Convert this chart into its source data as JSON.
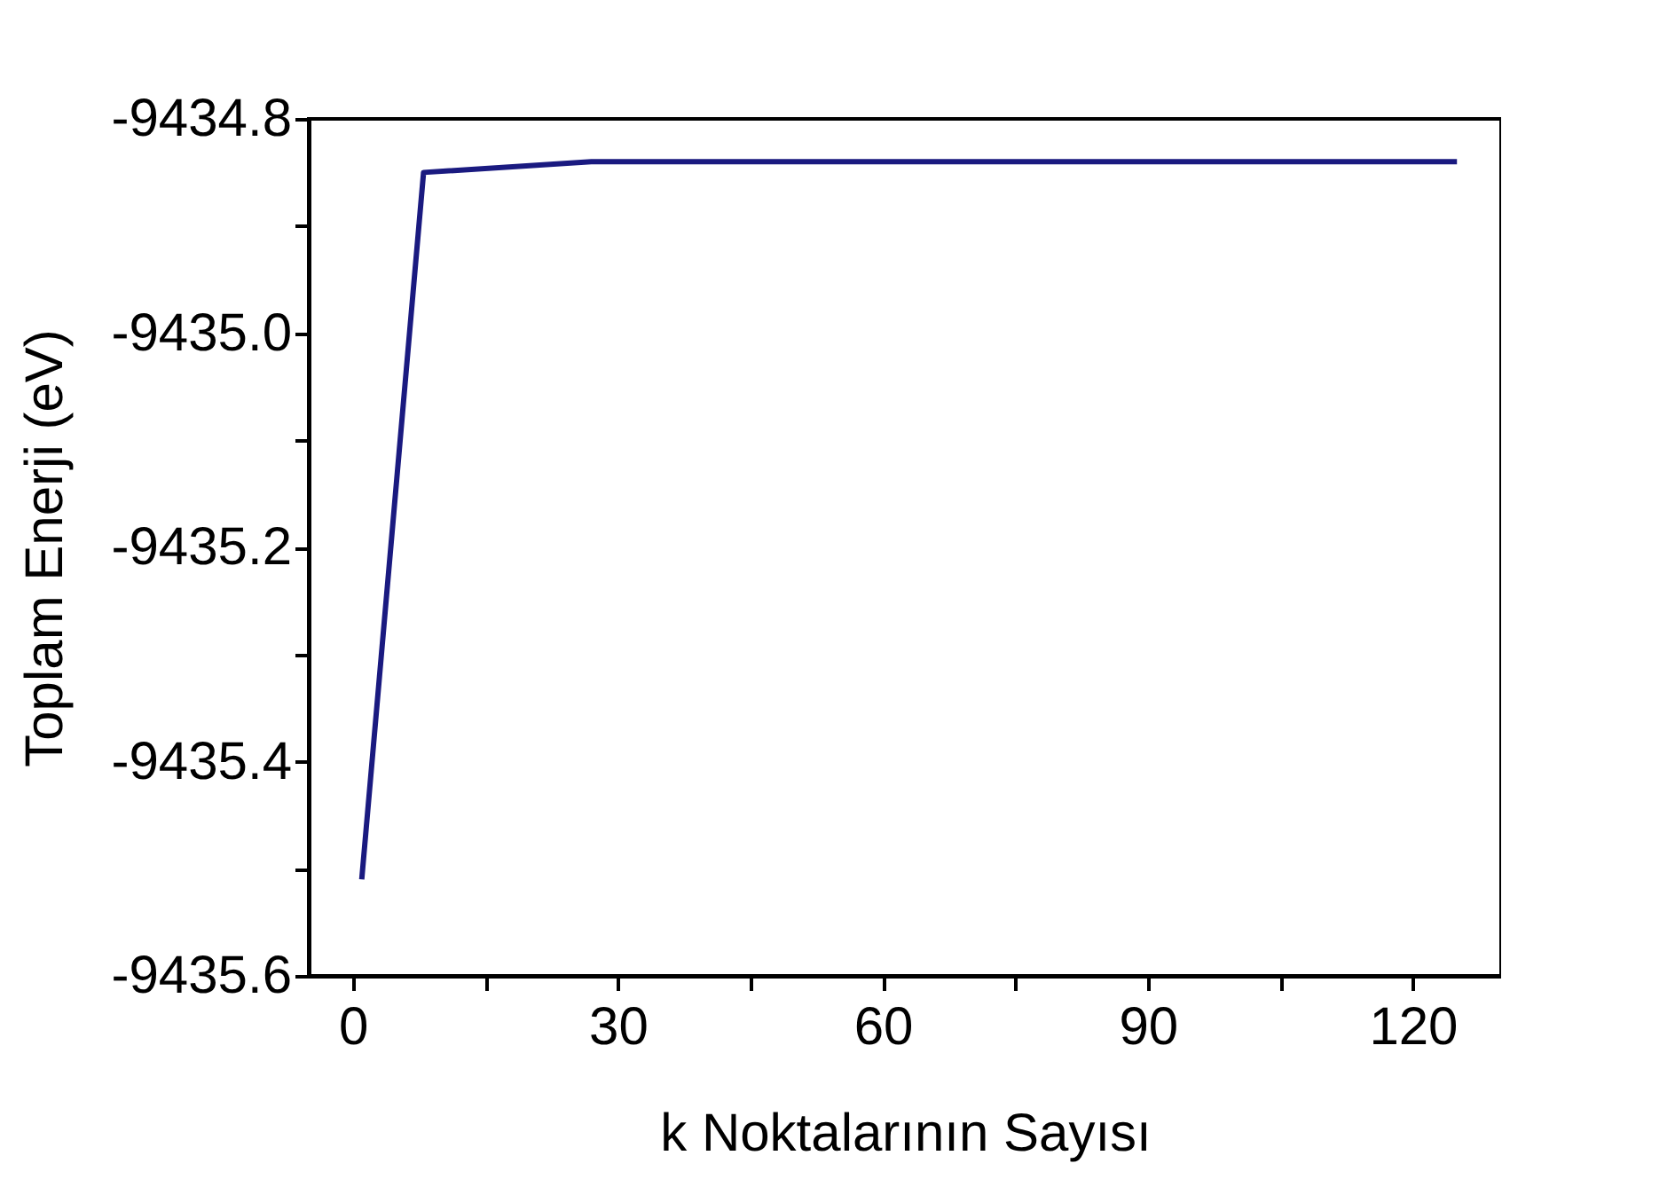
{
  "chart_data": {
    "type": "line",
    "xlabel": "k Noktalarının Sayısı",
    "ylabel": "Toplam Enerji (eV)",
    "x": [
      1,
      8,
      27,
      64,
      125
    ],
    "series": [
      {
        "color": "#1a1a80",
        "values": [
          -9435.51,
          -9434.85,
          -9434.84,
          -9434.84,
          -9434.84
        ]
      }
    ],
    "xlim": [
      -5,
      130
    ],
    "xticks": [
      0,
      {
        "value": 15,
        "label": null
      },
      30,
      {
        "value": 45,
        "label": null
      },
      60,
      {
        "value": 75,
        "label": null
      },
      90,
      {
        "value": 105,
        "label": null
      },
      120
    ],
    "ylim": [
      -9435.6,
      -9434.8
    ],
    "yticks": [
      {
        "value": -9435.6,
        "label": "-9435.6"
      },
      {
        "value": -9435.5,
        "label": null
      },
      {
        "value": -9435.4,
        "label": "-9435.4"
      },
      {
        "value": -9435.3,
        "label": null
      },
      {
        "value": -9435.2,
        "label": "-9435.2"
      },
      {
        "value": -9435.1,
        "label": null
      },
      {
        "value": -9435.0,
        "label": "-9435.0"
      },
      {
        "value": -9434.9,
        "label": null
      },
      {
        "value": -9434.8,
        "label": "-9434.8"
      }
    ],
    "grid": false,
    "legend": false,
    "marker": "none",
    "line_style": "solid"
  }
}
